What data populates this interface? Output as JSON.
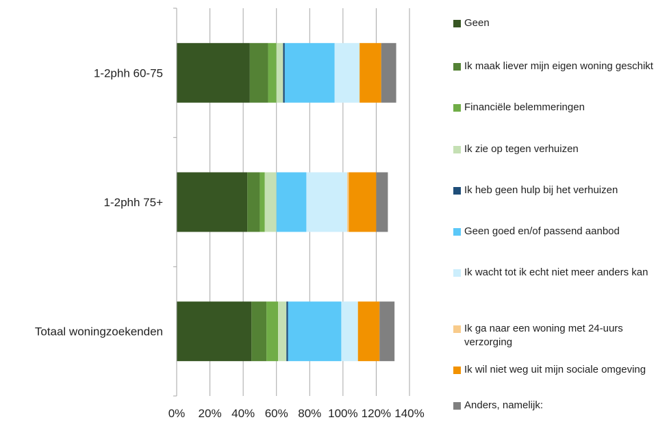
{
  "chart_data": {
    "type": "bar",
    "orientation": "horizontal",
    "stacked": true,
    "categories": [
      "1-2phh 60-75",
      "1-2phh 75+",
      "Totaal woningzoekenden"
    ],
    "x_ticks": [
      "0%",
      "20%",
      "40%",
      "60%",
      "80%",
      "100%",
      "120%",
      "140%"
    ],
    "xlim": [
      0,
      140
    ],
    "grid": "vertical",
    "legend_position": "right",
    "series": [
      {
        "name": "Geen",
        "color": "#375623",
        "values": [
          44,
          42.5,
          45
        ]
      },
      {
        "name": "Ik maak liever mijn eigen woning geschikt",
        "color": "#548235",
        "values": [
          11,
          7.5,
          9
        ]
      },
      {
        "name": "Financiële belemmeringen",
        "color": "#70AD47",
        "values": [
          5,
          3,
          7
        ]
      },
      {
        "name": "Ik zie op tegen verhuizen",
        "color": "#C5E0B4",
        "values": [
          4,
          7,
          5
        ]
      },
      {
        "name": "Ik heb geen hulp bij het verhuizen",
        "color": "#1F4E79",
        "values": [
          1,
          0,
          1
        ]
      },
      {
        "name": "Geen goed en/of passend aanbod",
        "color": "#5BC8F8",
        "values": [
          30,
          18,
          32
        ]
      },
      {
        "name": "Ik wacht tot ik echt niet meer anders kan",
        "color": "#CCEEFC",
        "values": [
          15,
          24.5,
          10
        ]
      },
      {
        "name": "Ik ga naar een woning met 24-uurs verzorging",
        "color": "#F8CB8B",
        "values": [
          0,
          1,
          0
        ]
      },
      {
        "name": "Ik wil niet weg uit mijn sociale omgeving",
        "color": "#F29200",
        "values": [
          13,
          16.5,
          13
        ]
      },
      {
        "name": "Anders, namelijk:",
        "color": "#808080",
        "values": [
          9,
          7,
          9
        ]
      }
    ]
  }
}
